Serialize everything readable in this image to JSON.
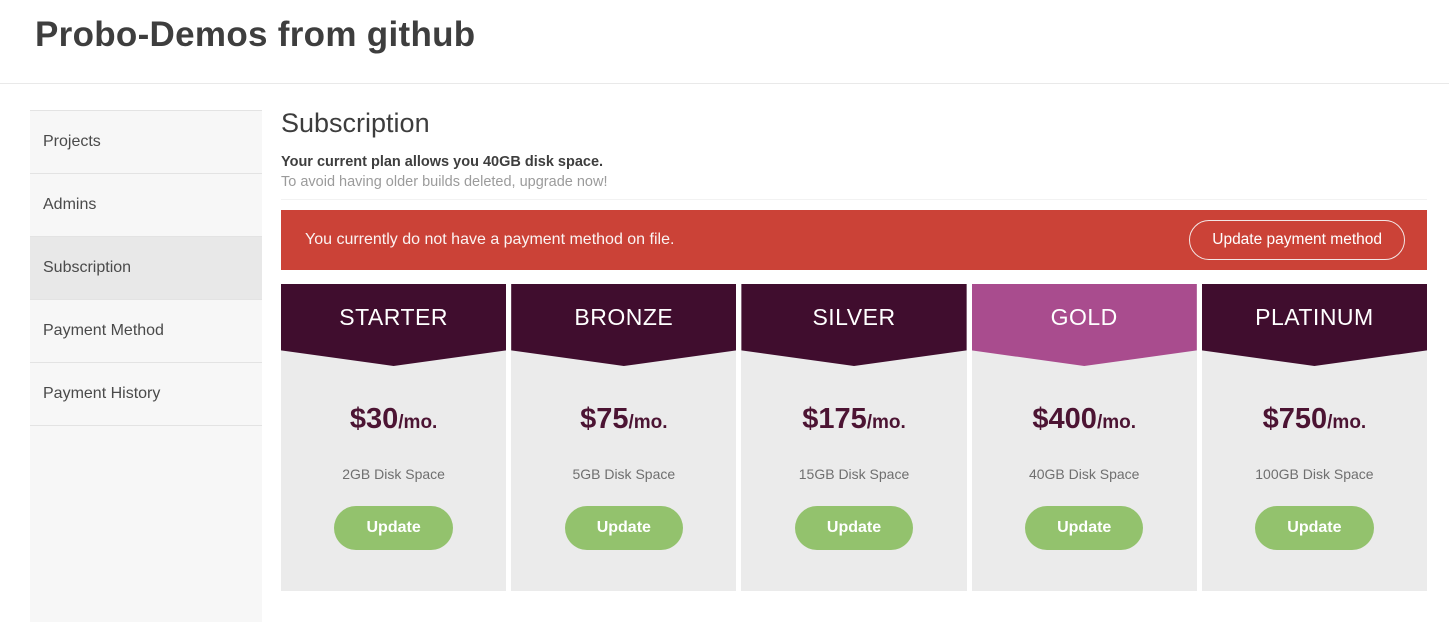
{
  "page": {
    "title": "Probo-Demos from github"
  },
  "sidebar": {
    "items": [
      {
        "label": "Projects",
        "selected": false
      },
      {
        "label": "Admins",
        "selected": false
      },
      {
        "label": "Subscription",
        "selected": true
      },
      {
        "label": "Payment Method",
        "selected": false
      },
      {
        "label": "Payment History",
        "selected": false
      }
    ]
  },
  "main": {
    "heading": "Subscription",
    "plan_summary": "Your current plan allows you 40GB disk space.",
    "upgrade_hint": "To avoid having older builds deleted, upgrade now!",
    "alert": {
      "message": "You currently do not have a payment method on file.",
      "button_label": "Update payment method"
    },
    "plans": [
      {
        "name": "STARTER",
        "price": "$30",
        "period": "/mo.",
        "disk": "2GB Disk Space",
        "button_label": "Update",
        "highlighted": false
      },
      {
        "name": "BRONZE",
        "price": "$75",
        "period": "/mo.",
        "disk": "5GB Disk Space",
        "button_label": "Update",
        "highlighted": false
      },
      {
        "name": "SILVER",
        "price": "$175",
        "period": "/mo.",
        "disk": "15GB Disk Space",
        "button_label": "Update",
        "highlighted": false
      },
      {
        "name": "GOLD",
        "price": "$400",
        "period": "/mo.",
        "disk": "40GB Disk Space",
        "button_label": "Update",
        "highlighted": true
      },
      {
        "name": "PLATINUM",
        "price": "$750",
        "period": "/mo.",
        "disk": "100GB Disk Space",
        "button_label": "Update",
        "highlighted": false
      }
    ]
  },
  "colors": {
    "alert_red": "#cb4237",
    "plan_header_maroon": "#400d2e",
    "plan_header_highlight_pink": "#a94c8e",
    "price_maroon": "#4c1433",
    "update_button_green": "#93c26d",
    "card_body_gray": "#ebebeb",
    "sidebar_gray": "#f7f7f7",
    "sidebar_selected_gray": "#e8e8e8"
  }
}
